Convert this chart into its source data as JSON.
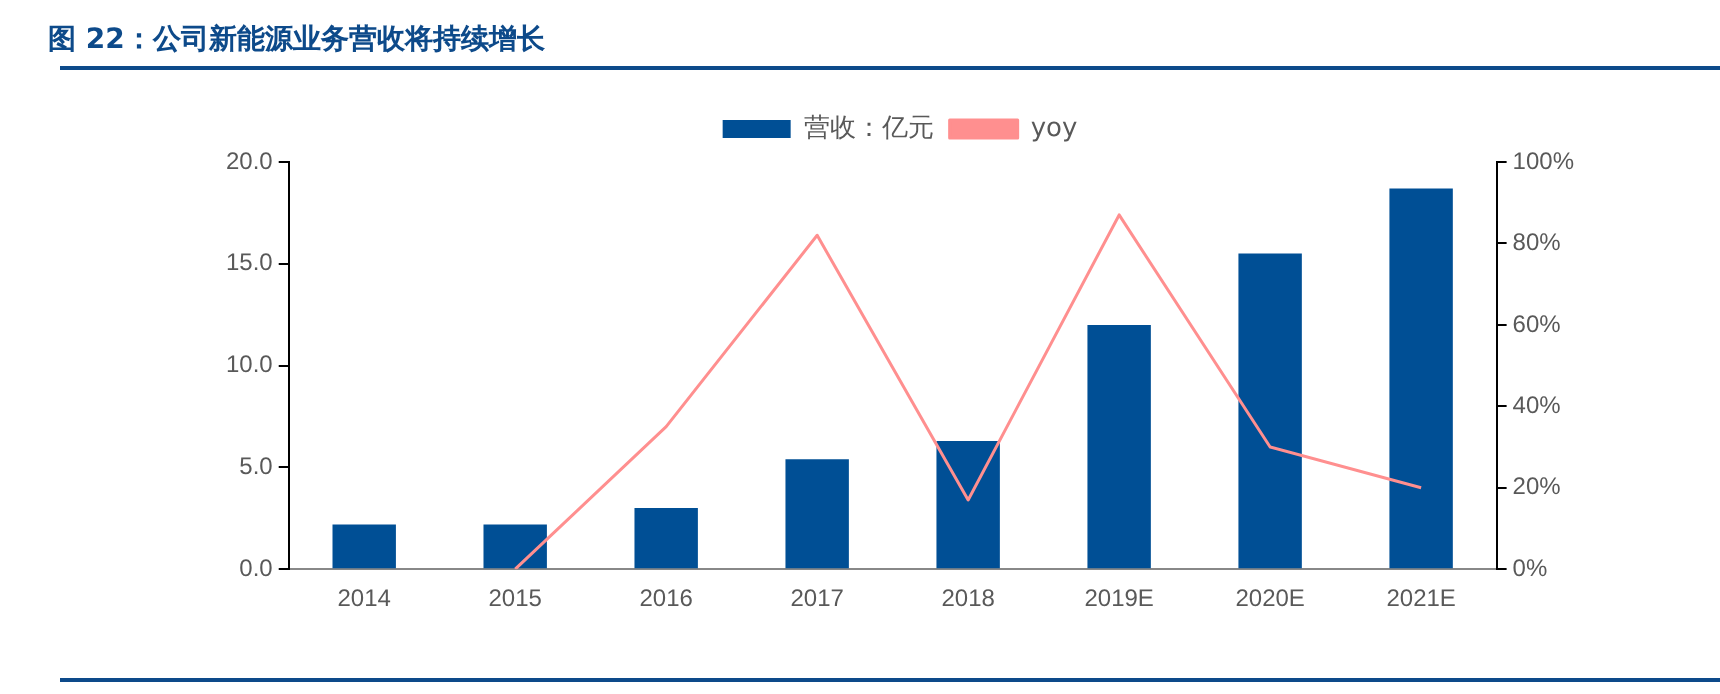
{
  "chart_data": {
    "type": "bar",
    "title": "图 22：公司新能源业务营收将持续增长",
    "categories": [
      "2014",
      "2015",
      "2016",
      "2017",
      "2018",
      "2019E",
      "2020E",
      "2021E"
    ],
    "series": [
      {
        "name": "营收：亿元",
        "color": "#004f95",
        "values": [
          2.2,
          2.2,
          3.0,
          5.4,
          6.3,
          12.0,
          15.5,
          18.7
        ]
      },
      {
        "name": "yoy",
        "type": "line",
        "axis": "y2",
        "color": "#ff8f8f",
        "values": [
          null,
          0,
          35,
          82,
          17,
          87,
          30,
          20
        ]
      }
    ],
    "ylim": [
      0,
      20
    ],
    "yticks": [
      {
        "value": 0,
        "label": "0.0"
      },
      {
        "value": 5,
        "label": "5.0"
      },
      {
        "value": 10,
        "label": "10.0"
      },
      {
        "value": 15,
        "label": "15.0"
      },
      {
        "value": 20,
        "label": "20.0"
      }
    ],
    "y2lim": [
      0,
      100
    ],
    "y2ticks": [
      {
        "value": 0,
        "label": "0%"
      },
      {
        "value": 20,
        "label": "20%"
      },
      {
        "value": 40,
        "label": "40%"
      },
      {
        "value": 60,
        "label": "60%"
      },
      {
        "value": 80,
        "label": "80%"
      },
      {
        "value": 100,
        "label": "100%"
      }
    ],
    "legend": "top",
    "grid": false,
    "marker": "none"
  }
}
